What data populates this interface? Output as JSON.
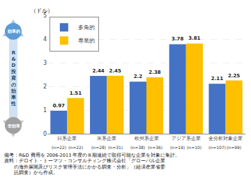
{
  "chart_data": {
    "type": "bar",
    "categories": [
      "日系企業",
      "米系企業",
      "欧州系企業",
      "アジア系企業",
      "全分析対象企業"
    ],
    "series": [
      {
        "name": "多角的",
        "color": "#4472C4",
        "values": [
          0.97,
          2.44,
          2.2,
          3.78,
          2.11
        ],
        "n_labels": [
          "(n=22)",
          "(n=28)",
          "(n=38)",
          "(n=19)",
          "(n=107)"
        ]
      },
      {
        "name": "専業的",
        "color": "#FFC000",
        "values": [
          1.51,
          2.45,
          2.38,
          3.81,
          2.25
        ],
        "n_labels": [
          "(n=22)",
          "(n=31)",
          "(n=36)",
          "(n=10)",
          "(n=99)"
        ]
      }
    ],
    "ylim": [
      0,
      5
    ],
    "yticks": [
      0,
      1,
      2,
      3,
      4,
      5
    ],
    "ylabel": "（ドル）",
    "grid": true,
    "legend": "upper left",
    "data_labels": true,
    "notes": [
      "備考：R&D 費用を 2006-2013 年度の８期連続で取得可能な企業を対象に集計。",
      "資料：デロイト・トーマツ・コンサルティング株式会社「グローバル企業",
      "　　の海外展開及びリスク管理手法にかかる調査・分析」（経済産業省委",
      "　　託調査）から作成。"
    ],
    "arrow_label_top": "効率的",
    "arrow_label_bottom": "非効率",
    "arrow_text_lines": [
      "R",
      "&",
      "D",
      "投",
      "資",
      "の",
      "効",
      "率",
      "性"
    ]
  }
}
